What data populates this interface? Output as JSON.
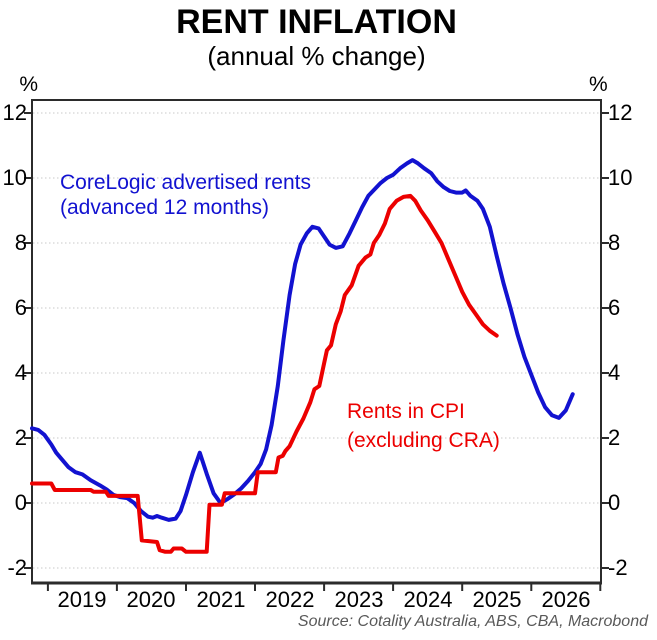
{
  "header": {
    "title": "RENT INFLATION",
    "subtitle": "(annual % change)"
  },
  "source": "Source: Cotality Australia, ABS, CBA, Macrobond",
  "chart_data": {
    "type": "line",
    "title": "RENT INFLATION",
    "subtitle": "(annual % change)",
    "unit_label": "%",
    "grid": "horizontal dotted gridlines only",
    "legend_position": "in-plot text annotations",
    "axis_color": "#2b2b2b",
    "grid_color": "#c9c9c9",
    "ylim": [
      -2.46,
      12.4
    ],
    "yticks": [
      12,
      10,
      8,
      6,
      4,
      2,
      0,
      -2
    ],
    "xlim": [
      2018.77,
      2027.01
    ],
    "xtick_years": [
      2019,
      2020,
      2021,
      2022,
      2023,
      2024,
      2025,
      2026,
      2027
    ],
    "xtick_labels": [
      "2019",
      "2020",
      "2021",
      "2022",
      "2023",
      "2024",
      "2025",
      "2026"
    ],
    "series": [
      {
        "name": "CoreLogic advertised rents (advanced 12 months)",
        "label_lines": [
          "CoreLogic advertised rents",
          "(advanced 12 months)"
        ],
        "color": "#1212d0",
        "points": [
          [
            2018.77,
            2.3
          ],
          [
            2018.86,
            2.25
          ],
          [
            2018.95,
            2.1
          ],
          [
            2019.05,
            1.8
          ],
          [
            2019.12,
            1.55
          ],
          [
            2019.2,
            1.35
          ],
          [
            2019.3,
            1.1
          ],
          [
            2019.4,
            0.95
          ],
          [
            2019.5,
            0.88
          ],
          [
            2019.62,
            0.7
          ],
          [
            2019.75,
            0.55
          ],
          [
            2019.85,
            0.42
          ],
          [
            2019.95,
            0.25
          ],
          [
            2020.05,
            0.18
          ],
          [
            2020.15,
            0.15
          ],
          [
            2020.25,
            0.0
          ],
          [
            2020.35,
            -0.25
          ],
          [
            2020.45,
            -0.42
          ],
          [
            2020.52,
            -0.45
          ],
          [
            2020.58,
            -0.4
          ],
          [
            2020.65,
            -0.45
          ],
          [
            2020.75,
            -0.52
          ],
          [
            2020.85,
            -0.48
          ],
          [
            2020.92,
            -0.25
          ],
          [
            2021.0,
            0.25
          ],
          [
            2021.1,
            0.95
          ],
          [
            2021.2,
            1.55
          ],
          [
            2021.3,
            0.9
          ],
          [
            2021.4,
            0.3
          ],
          [
            2021.5,
            0.0
          ],
          [
            2021.6,
            0.12
          ],
          [
            2021.7,
            0.27
          ],
          [
            2021.8,
            0.45
          ],
          [
            2021.9,
            0.68
          ],
          [
            2022.0,
            0.95
          ],
          [
            2022.08,
            1.2
          ],
          [
            2022.16,
            1.65
          ],
          [
            2022.24,
            2.4
          ],
          [
            2022.33,
            3.6
          ],
          [
            2022.41,
            5.0
          ],
          [
            2022.5,
            6.4
          ],
          [
            2022.58,
            7.35
          ],
          [
            2022.66,
            7.95
          ],
          [
            2022.75,
            8.3
          ],
          [
            2022.83,
            8.5
          ],
          [
            2022.92,
            8.45
          ],
          [
            2023.0,
            8.2
          ],
          [
            2023.08,
            7.95
          ],
          [
            2023.17,
            7.85
          ],
          [
            2023.27,
            7.9
          ],
          [
            2023.37,
            8.3
          ],
          [
            2023.46,
            8.7
          ],
          [
            2023.55,
            9.1
          ],
          [
            2023.64,
            9.45
          ],
          [
            2023.73,
            9.65
          ],
          [
            2023.82,
            9.85
          ],
          [
            2023.91,
            10.0
          ],
          [
            2024.0,
            10.1
          ],
          [
            2024.1,
            10.3
          ],
          [
            2024.2,
            10.45
          ],
          [
            2024.28,
            10.55
          ],
          [
            2024.36,
            10.45
          ],
          [
            2024.45,
            10.3
          ],
          [
            2024.55,
            10.15
          ],
          [
            2024.64,
            9.9
          ],
          [
            2024.73,
            9.72
          ],
          [
            2024.82,
            9.6
          ],
          [
            2024.91,
            9.55
          ],
          [
            2025.0,
            9.55
          ],
          [
            2025.05,
            9.62
          ],
          [
            2025.12,
            9.45
          ],
          [
            2025.22,
            9.3
          ],
          [
            2025.3,
            9.05
          ],
          [
            2025.4,
            8.5
          ],
          [
            2025.5,
            7.6
          ],
          [
            2025.6,
            6.75
          ],
          [
            2025.7,
            6.0
          ],
          [
            2025.8,
            5.2
          ],
          [
            2025.9,
            4.5
          ],
          [
            2026.0,
            3.95
          ],
          [
            2026.1,
            3.4
          ],
          [
            2026.2,
            2.95
          ],
          [
            2026.3,
            2.7
          ],
          [
            2026.4,
            2.62
          ],
          [
            2026.5,
            2.85
          ],
          [
            2026.6,
            3.35
          ]
        ]
      },
      {
        "name": "Rents in CPI (excluding CRA)",
        "label_lines": [
          "Rents in CPI",
          "(excluding CRA)"
        ],
        "color": "#ec0000",
        "points": [
          [
            2018.77,
            0.6
          ],
          [
            2019.05,
            0.6
          ],
          [
            2019.1,
            0.4
          ],
          [
            2019.62,
            0.4
          ],
          [
            2019.66,
            0.35
          ],
          [
            2019.84,
            0.35
          ],
          [
            2019.88,
            0.22
          ],
          [
            2020.3,
            0.22
          ],
          [
            2020.36,
            -1.15
          ],
          [
            2020.58,
            -1.2
          ],
          [
            2020.62,
            -1.45
          ],
          [
            2020.7,
            -1.5
          ],
          [
            2020.78,
            -1.5
          ],
          [
            2020.82,
            -1.4
          ],
          [
            2020.94,
            -1.4
          ],
          [
            2021.0,
            -1.5
          ],
          [
            2021.3,
            -1.5
          ],
          [
            2021.34,
            -0.05
          ],
          [
            2021.52,
            -0.05
          ],
          [
            2021.56,
            0.3
          ],
          [
            2022.0,
            0.3
          ],
          [
            2022.04,
            0.95
          ],
          [
            2022.3,
            0.95
          ],
          [
            2022.34,
            1.4
          ],
          [
            2022.4,
            1.45
          ],
          [
            2022.44,
            1.6
          ],
          [
            2022.5,
            1.75
          ],
          [
            2022.6,
            2.2
          ],
          [
            2022.7,
            2.6
          ],
          [
            2022.8,
            3.1
          ],
          [
            2022.86,
            3.5
          ],
          [
            2022.93,
            3.6
          ],
          [
            2023.0,
            4.3
          ],
          [
            2023.04,
            4.7
          ],
          [
            2023.1,
            4.85
          ],
          [
            2023.17,
            5.5
          ],
          [
            2023.24,
            5.9
          ],
          [
            2023.3,
            6.4
          ],
          [
            2023.4,
            6.7
          ],
          [
            2023.5,
            7.3
          ],
          [
            2023.6,
            7.55
          ],
          [
            2023.67,
            7.65
          ],
          [
            2023.72,
            8.0
          ],
          [
            2023.8,
            8.25
          ],
          [
            2023.88,
            8.6
          ],
          [
            2023.95,
            9.05
          ],
          [
            2024.05,
            9.3
          ],
          [
            2024.15,
            9.42
          ],
          [
            2024.25,
            9.45
          ],
          [
            2024.32,
            9.3
          ],
          [
            2024.4,
            9.0
          ],
          [
            2024.5,
            8.7
          ],
          [
            2024.6,
            8.35
          ],
          [
            2024.7,
            8.0
          ],
          [
            2024.8,
            7.5
          ],
          [
            2024.9,
            7.0
          ],
          [
            2025.0,
            6.5
          ],
          [
            2025.1,
            6.1
          ],
          [
            2025.2,
            5.8
          ],
          [
            2025.3,
            5.5
          ],
          [
            2025.4,
            5.3
          ],
          [
            2025.5,
            5.15
          ]
        ]
      }
    ]
  }
}
